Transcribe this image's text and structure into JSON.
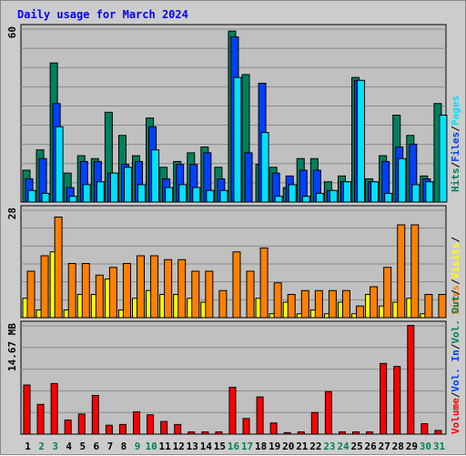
{
  "chart_data": {
    "type": "bar",
    "title": "Daily usage for March 2024",
    "days": [
      "1",
      "2",
      "3",
      "4",
      "5",
      "6",
      "7",
      "8",
      "9",
      "10",
      "11",
      "12",
      "13",
      "14",
      "15",
      "16",
      "17",
      "18",
      "19",
      "20",
      "21",
      "22",
      "23",
      "24",
      "25",
      "26",
      "27",
      "28",
      "29",
      "30",
      "31"
    ],
    "weekend_days": [
      "2",
      "3",
      "9",
      "10",
      "16",
      "17",
      "23",
      "24",
      "30",
      "31"
    ],
    "colors": {
      "hits": "#00805c",
      "files": "#0040ff",
      "pages": "#00e0ff",
      "visits": "#ffff00",
      "sites": "#ff8000",
      "volume": "#ff0000",
      "title": "#0000ff",
      "weekday_label": "#000000",
      "weekend_label": "#00805c",
      "panel_bg": "#c0c0c0"
    },
    "panels": [
      {
        "id": "hits-files-pages",
        "scale_label": "60",
        "ymax": 60,
        "legend": [
          "Pages",
          "Files",
          "Hits"
        ],
        "series": [
          {
            "name": "Hits",
            "key": "hits",
            "values": [
              11,
              18,
              48,
              10,
              16,
              15,
              31,
              23,
              16,
              29,
              12,
              14,
              17,
              19,
              12,
              59,
              44,
              13,
              12,
              5,
              15,
              15,
              7,
              9,
              43,
              8,
              16,
              30,
              23,
              9,
              34
            ]
          },
          {
            "name": "Files",
            "key": "files",
            "values": [
              8,
              15,
              34,
              5,
              14,
              14,
              10,
              13,
              14,
              26,
              8,
              13,
              13,
              17,
              8,
              57,
              17,
              41,
              10,
              9,
              11,
              11,
              4,
              7,
              42,
              7,
              14,
              19,
              20,
              8,
              0
            ]
          },
          {
            "name": "Pages",
            "key": "pages",
            "values": [
              4,
              3,
              26,
              2,
              6,
              7,
              10,
              12,
              6,
              18,
              5,
              6,
              5,
              4,
              4,
              43,
              0,
              24,
              2,
              6,
              2,
              3,
              4,
              7,
              42,
              7,
              3,
              15,
              6,
              7,
              30
            ]
          }
        ]
      },
      {
        "id": "visits-sites",
        "scale_label": "28",
        "ymax": 28,
        "legend": [
          "Sites",
          "Visits"
        ],
        "series": [
          {
            "name": "Visits",
            "key": "visits",
            "values": [
              5,
              2,
              17,
              2,
              6,
              6,
              10,
              2,
              5,
              7,
              6,
              6,
              5,
              4,
              0,
              0,
              0,
              5,
              1,
              4,
              1,
              2,
              1,
              4,
              1,
              6,
              3,
              4,
              5,
              1,
              0
            ]
          },
          {
            "name": "Sites",
            "key": "sites",
            "values": [
              12,
              16,
              26,
              14,
              14,
              11,
              13,
              14,
              16,
              16,
              15,
              15,
              12,
              12,
              7,
              17,
              12,
              18,
              9,
              6,
              7,
              7,
              7,
              7,
              3,
              8,
              13,
              24,
              24,
              6,
              6
            ]
          }
        ]
      },
      {
        "id": "volume",
        "scale_label": "14.67 MB",
        "ymax": 14.67,
        "legend": [
          "Volume",
          "Vol. In",
          "Vol. Out"
        ],
        "series": [
          {
            "name": "Volume",
            "key": "volume",
            "values": [
              6.6,
              4.0,
              6.8,
              1.9,
              2.7,
              5.2,
              1.2,
              1.3,
              3.0,
              2.6,
              1.7,
              1.3,
              0.3,
              0.3,
              0.3,
              6.3,
              2.1,
              5.0,
              1.5,
              0.2,
              0.3,
              2.9,
              5.7,
              0.3,
              0.3,
              0.3,
              9.5,
              9.1,
              14.6,
              1.4,
              0.5
            ]
          }
        ]
      }
    ]
  }
}
